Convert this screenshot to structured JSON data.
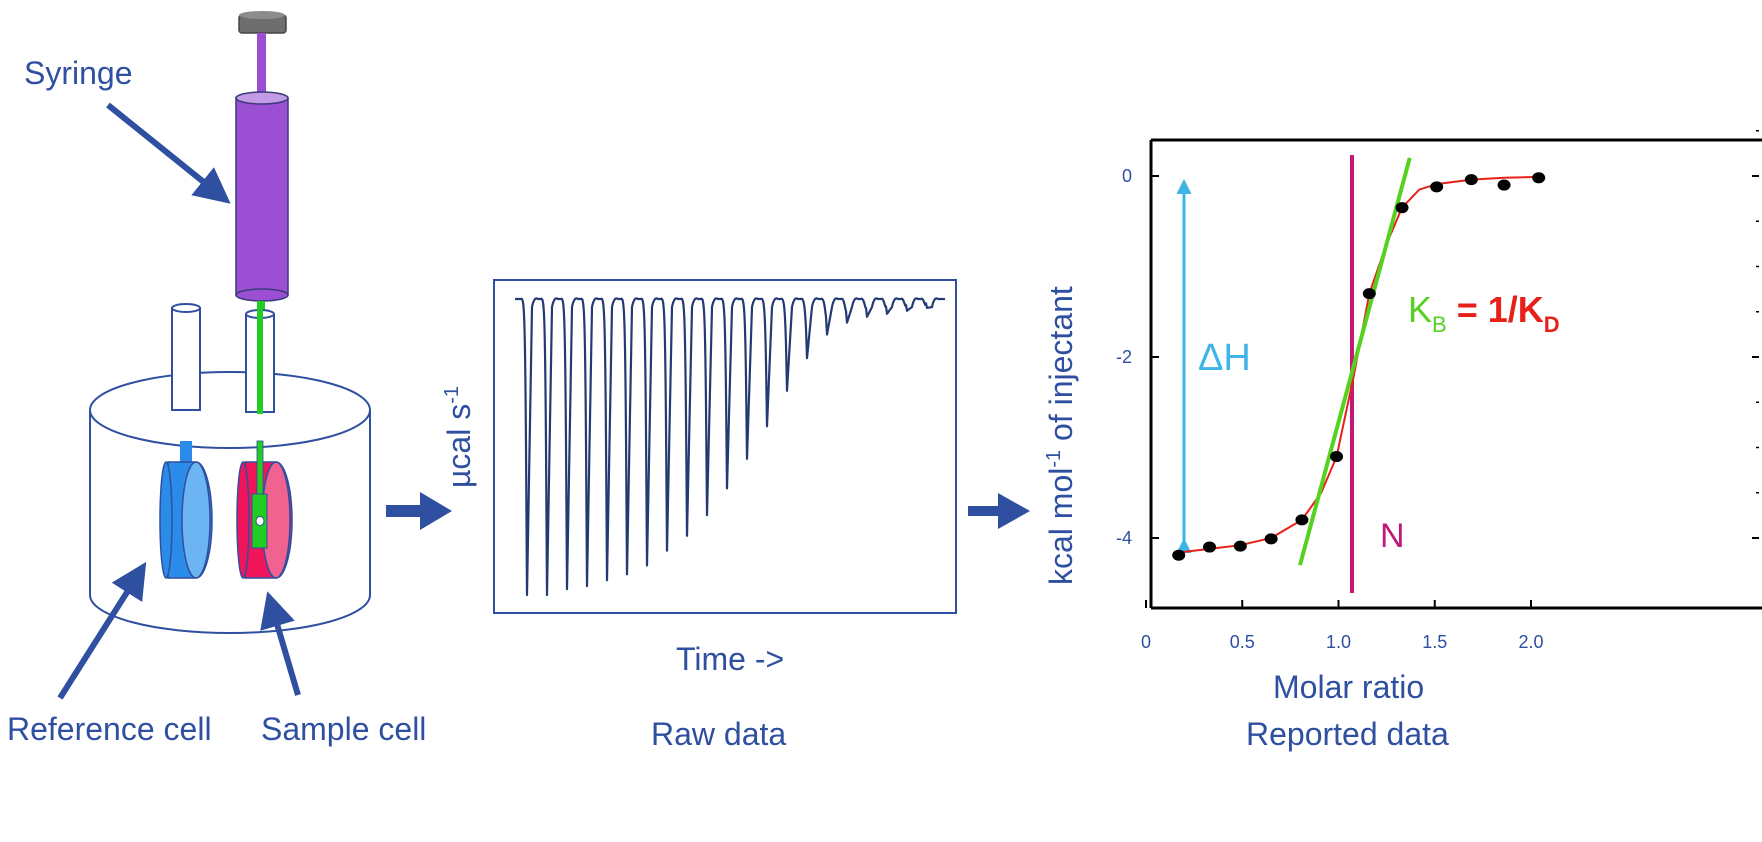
{
  "diagram": {
    "syringe_label": "Syringe",
    "reference_cell_label": "Reference cell",
    "sample_cell_label": "Sample cell",
    "raw": {
      "y_label_main": "µcal s",
      "y_label_sup": "-1",
      "x_label": "Time ->",
      "caption": "Raw data",
      "peak_depths_fraction": [
        1.0,
        1.0,
        0.98,
        0.97,
        0.95,
        0.93,
        0.9,
        0.85,
        0.8,
        0.73,
        0.64,
        0.54,
        0.43,
        0.31,
        0.2,
        0.12,
        0.08,
        0.06,
        0.05,
        0.04,
        0.03
      ]
    },
    "colors": {
      "arrow": "#2f4fa0",
      "syringe": "#9b4fd3",
      "reference_cell": "#2b8be8",
      "sample_cell": "#f0145a",
      "needle": "#22cc22",
      "fit_line": "#e8201a",
      "slope_line": "#55d21f",
      "n_line": "#c2187a",
      "delta_h": "#3fb4e8"
    }
  },
  "chart_data": {
    "type": "scatter",
    "xlabel": "Molar ratio",
    "ylabel_main": "kcal mol",
    "ylabel_sup": "-1",
    "ylabel_tail": " of injectant",
    "caption": "Reported data",
    "xlim": [
      0,
      2.2
    ],
    "ylim": [
      -4.7,
      0.35
    ],
    "x_ticks": [
      {
        "value": 0,
        "label": "0"
      },
      {
        "value": 0.5,
        "label": "0.5"
      },
      {
        "value": 1.0,
        "label": "1.0"
      },
      {
        "value": 1.5,
        "label": "1.5"
      },
      {
        "value": 2.0,
        "label": "2.0"
      }
    ],
    "y_ticks": [
      {
        "value": 0,
        "label": "0"
      },
      {
        "value": -2,
        "label": "-2"
      },
      {
        "value": -4,
        "label": "-4"
      }
    ],
    "points": [
      {
        "x": 0.17,
        "y": -4.19
      },
      {
        "x": 0.33,
        "y": -4.1
      },
      {
        "x": 0.49,
        "y": -4.09
      },
      {
        "x": 0.65,
        "y": -4.01
      },
      {
        "x": 0.81,
        "y": -3.8
      },
      {
        "x": 0.99,
        "y": -3.1
      },
      {
        "x": 1.16,
        "y": -1.3
      },
      {
        "x": 1.33,
        "y": -0.35
      },
      {
        "x": 1.51,
        "y": -0.12
      },
      {
        "x": 1.69,
        "y": -0.04
      },
      {
        "x": 1.86,
        "y": -0.1
      },
      {
        "x": 2.04,
        "y": -0.02
      }
    ],
    "fit": [
      {
        "x": 0.17,
        "y": -4.16
      },
      {
        "x": 0.33,
        "y": -4.12
      },
      {
        "x": 0.49,
        "y": -4.08
      },
      {
        "x": 0.65,
        "y": -4.0
      },
      {
        "x": 0.81,
        "y": -3.8
      },
      {
        "x": 0.91,
        "y": -3.5
      },
      {
        "x": 0.99,
        "y": -3.1
      },
      {
        "x": 1.08,
        "y": -2.2
      },
      {
        "x": 1.16,
        "y": -1.3
      },
      {
        "x": 1.25,
        "y": -0.75
      },
      {
        "x": 1.33,
        "y": -0.35
      },
      {
        "x": 1.42,
        "y": -0.15
      },
      {
        "x": 1.51,
        "y": -0.09
      },
      {
        "x": 1.69,
        "y": -0.04
      },
      {
        "x": 1.86,
        "y": -0.02
      },
      {
        "x": 2.04,
        "y": -0.01
      }
    ],
    "slope_line": [
      {
        "x": 0.8,
        "y": -4.3
      },
      {
        "x": 1.37,
        "y": 0.2
      }
    ],
    "n_value": 1.07,
    "n_label": "N",
    "delta_h_label": "ΔH",
    "delta_h_range": [
      0,
      -4.1
    ],
    "kb": {
      "k": "K",
      "sub_b": "B",
      "eq": " = 1/K",
      "sub_d": "D"
    }
  }
}
